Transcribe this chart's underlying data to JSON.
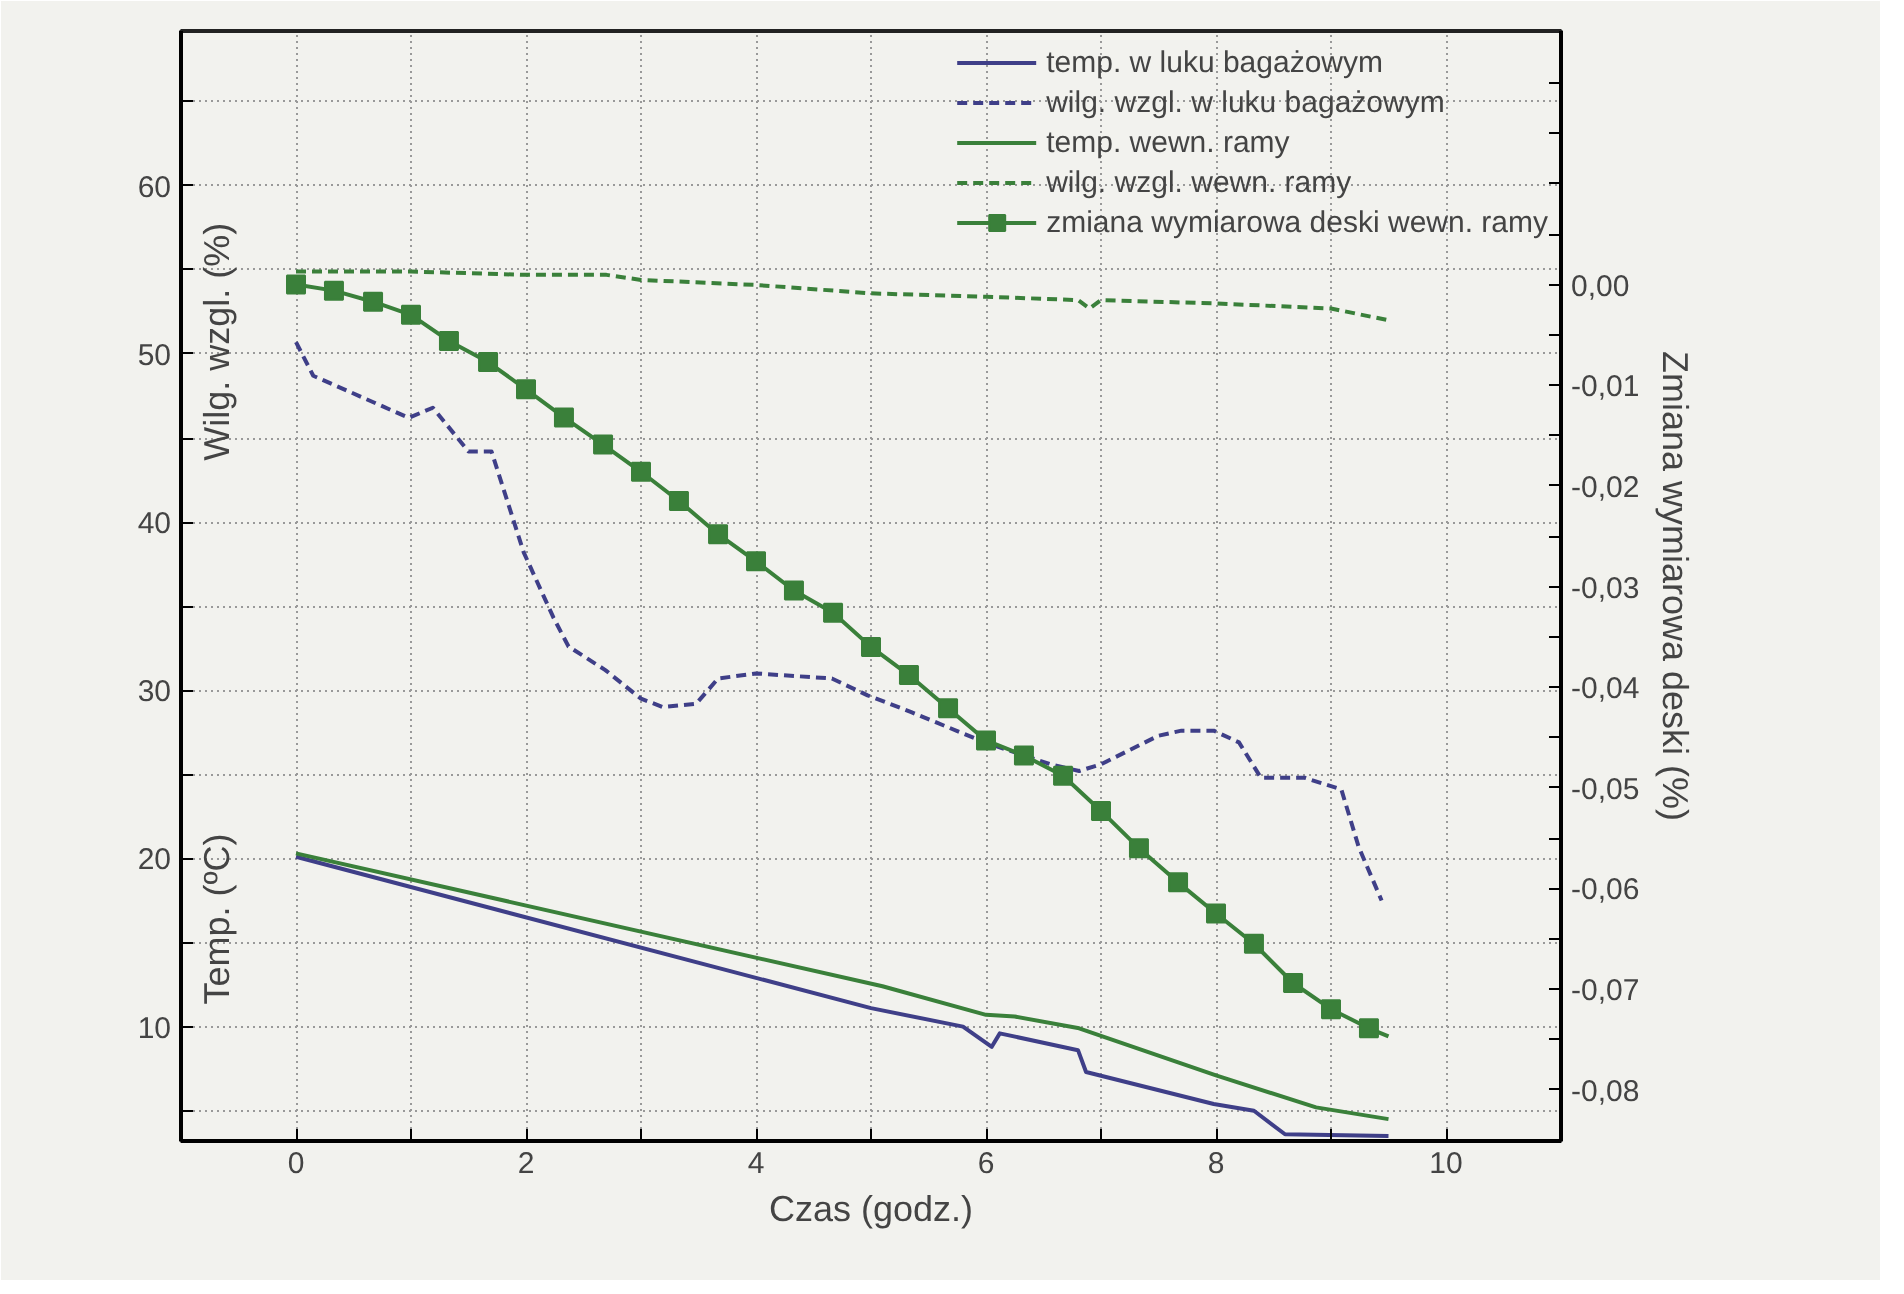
{
  "chart_data": {
    "type": "line",
    "xlabel": "Czas (godz.)",
    "ylabel": "Wilg. wzgl. (%)",
    "y2label": "Zmiana wymiarowa deski (%)",
    "annotations": [
      "Temp. (ºC)"
    ],
    "xlim": [
      -1,
      11
    ],
    "xticks": [
      {
        "value": -1,
        "label": null
      },
      0,
      {
        "value": 1,
        "label": null
      },
      2,
      {
        "value": 3,
        "label": null
      },
      4,
      {
        "value": 5,
        "label": null
      },
      6,
      {
        "value": 7,
        "label": null
      },
      8,
      {
        "value": 9,
        "label": null
      },
      10,
      {
        "value": 11,
        "label": null
      }
    ],
    "ylim": [
      3.2,
      69.2
    ],
    "yticks": [
      {
        "value": 5,
        "label": null
      },
      10,
      {
        "value": 15,
        "label": null
      },
      20,
      {
        "value": 25,
        "label": null
      },
      30,
      {
        "value": 35,
        "label": null
      },
      40,
      {
        "value": 45,
        "label": null
      },
      50,
      {
        "value": 55,
        "label": null
      },
      60,
      {
        "value": 65,
        "label": null
      }
    ],
    "y2lim": [
      -0.0851,
      0.0252
    ],
    "y2ticks": [
      {
        "value": 0.02,
        "label": null
      },
      {
        "value": 0.015,
        "label": null
      },
      {
        "value": 0.01,
        "label": null
      },
      {
        "value": 0.005,
        "label": null
      },
      {
        "value": 0,
        "label": "0,00"
      },
      {
        "value": -0.005,
        "label": null
      },
      {
        "value": -0.01,
        "label": "-0,01"
      },
      {
        "value": -0.015,
        "label": null
      },
      {
        "value": -0.02,
        "label": "-0,02"
      },
      {
        "value": -0.025,
        "label": null
      },
      {
        "value": -0.03,
        "label": "-0,03"
      },
      {
        "value": -0.035,
        "label": null
      },
      {
        "value": -0.04,
        "label": "-0,04"
      },
      {
        "value": -0.045,
        "label": null
      },
      {
        "value": -0.05,
        "label": "-0,05"
      },
      {
        "value": -0.055,
        "label": null
      },
      {
        "value": -0.06,
        "label": "-0,06"
      },
      {
        "value": -0.065,
        "label": null
      },
      {
        "value": -0.07,
        "label": "-0,07"
      },
      {
        "value": -0.075,
        "label": null
      },
      {
        "value": -0.08,
        "label": "-0,08"
      }
    ],
    "grid": true,
    "legend": "top right",
    "series": [
      {
        "name": "temp. w luku bagażowym",
        "color": "#3f3f88",
        "line_style": "solid",
        "x": [
          0,
          5.0,
          5.8,
          6.05,
          6.12,
          6.8,
          6.87,
          7.98,
          8.33,
          8.6,
          9.5
        ],
        "values": [
          20.1,
          11.1,
          10.0,
          8.8,
          9.6,
          8.6,
          7.3,
          5.4,
          5.0,
          3.6,
          3.5
        ]
      },
      {
        "name": "wilg. wzgl. w luku bagażowym",
        "color": "#3f3f88",
        "line_style": "dashed",
        "x": [
          0,
          0.15,
          0.98,
          1.19,
          1.5,
          1.7,
          1.98,
          2.24,
          2.37,
          2.69,
          3.0,
          3.19,
          3.48,
          3.67,
          4.0,
          4.66,
          4.97,
          5.35,
          5.99,
          6.56,
          6.81,
          7.0,
          7.5,
          7.7,
          7.98,
          8.2,
          8.39,
          8.77,
          9.09,
          9.24,
          9.44
        ],
        "values": [
          50.7,
          48.7,
          46.2,
          46.8,
          44.2,
          44.2,
          38.2,
          34.3,
          32.6,
          31.2,
          29.5,
          29.0,
          29.2,
          30.7,
          31.0,
          30.7,
          29.7,
          28.7,
          26.9,
          25.6,
          25.2,
          25.6,
          27.3,
          27.6,
          27.6,
          26.9,
          24.8,
          24.8,
          24.1,
          20.7,
          17.5
        ]
      },
      {
        "name": "temp. wewn. ramy",
        "color": "#3a803a",
        "line_style": "solid",
        "x": [
          0,
          5.1,
          6.0,
          6.25,
          6.81,
          8.0,
          8.87,
          9.5
        ],
        "values": [
          20.3,
          12.4,
          10.7,
          10.6,
          9.9,
          7.1,
          5.2,
          4.5
        ]
      },
      {
        "name": "wilg. wzgl. wewn. ramy",
        "color": "#3a803a",
        "line_style": "dashed",
        "x": [
          0,
          1,
          2,
          2.7,
          3,
          4,
          5,
          6,
          6.8,
          6.9,
          7.0,
          8,
          9,
          9.5
        ],
        "values": [
          54.9,
          54.9,
          54.7,
          54.7,
          54.4,
          54.1,
          53.6,
          53.4,
          53.2,
          52.7,
          53.2,
          53.0,
          52.7,
          52.0
        ]
      },
      {
        "name": "zmiana wymiarowa deski wewn. ramy",
        "color": "#3a803a",
        "line_style": "solid",
        "marker": "square",
        "axis": "y2",
        "x": [
          0,
          0.33,
          0.67,
          1,
          1.33,
          1.67,
          2,
          2.33,
          2.67,
          3,
          3.33,
          3.67,
          4,
          4.33,
          4.67,
          5,
          5.33,
          5.67,
          6,
          6.33,
          6.67,
          7,
          7.33,
          7.67,
          8,
          8.33,
          8.67,
          9,
          9.33,
          9.5
        ],
        "values": [
          0.0,
          -0.0006,
          -0.0017,
          -0.003,
          -0.0056,
          -0.0077,
          -0.0104,
          -0.0132,
          -0.0159,
          -0.0186,
          -0.0215,
          -0.0248,
          -0.0275,
          -0.0304,
          -0.0326,
          -0.036,
          -0.0388,
          -0.0421,
          -0.0453,
          -0.0468,
          -0.0488,
          -0.0523,
          -0.056,
          -0.0594,
          -0.0625,
          -0.0655,
          -0.0694,
          -0.072,
          -0.0739,
          -0.0747
        ]
      }
    ]
  }
}
